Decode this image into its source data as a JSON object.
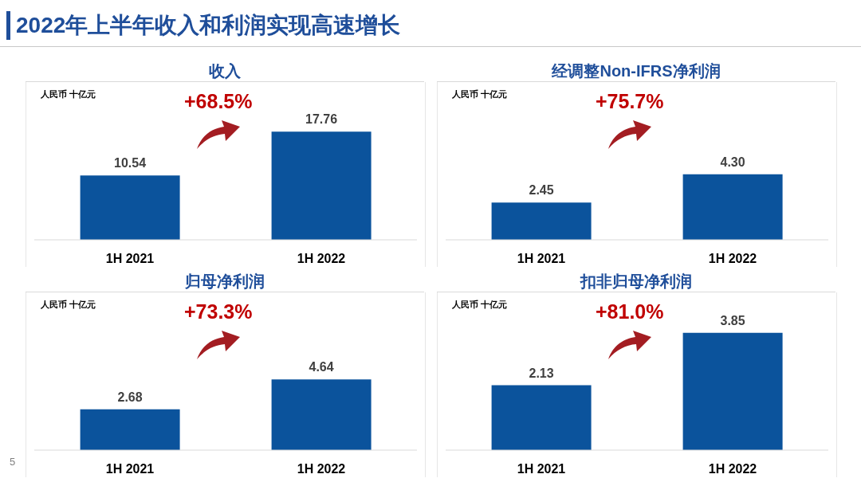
{
  "chart_data": [
    {
      "type": "other",
      "title": "2022年上半年收入和利润实现高速增长",
      "annotations": [
        "5"
      ]
    },
    {
      "type": "bar",
      "title": "收入",
      "categories": [
        "1H 2021",
        "1H 2022"
      ],
      "values": [
        10.54,
        17.76
      ],
      "color": "#0b539c",
      "data_labels": true,
      "annotations": [
        "人民币 十亿元",
        "+68.5%"
      ]
    },
    {
      "type": "bar",
      "title": "经调整Non-IFRS净利润",
      "categories": [
        "1H 2021",
        "1H 2022"
      ],
      "values": [
        2.45,
        4.3
      ],
      "value_labels": [
        "2.45",
        "4.30"
      ],
      "color": "#0b539c",
      "annotations": [
        "人民币 十亿元",
        "+75.7%"
      ]
    },
    {
      "type": "bar",
      "title": "归母净利润",
      "categories": [
        "1H 2021",
        "1H 2022"
      ],
      "values": [
        2.68,
        4.64
      ],
      "color": "#0b539c",
      "data_labels": true,
      "annotations": [
        "人民币 十亿元",
        "+73.3%"
      ]
    },
    {
      "type": "bar",
      "title": "扣非归母净利润",
      "categories": [
        "1H 2021",
        "1H 2022"
      ],
      "values": [
        2.13,
        3.85
      ],
      "color": "#0b539c",
      "data_labels": true,
      "annotations": [
        "人民币 十亿元",
        "+81.0%"
      ]
    }
  ]
}
